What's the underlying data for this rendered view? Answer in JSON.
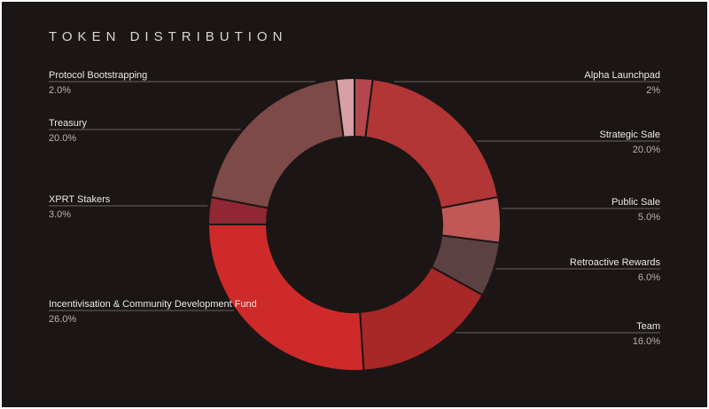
{
  "title": "TOKEN DISTRIBUTION",
  "colors": {
    "background": "#1b1615",
    "frame": "#ffffff",
    "title_text": "#d9d6d3",
    "label_text": "#eae8e6",
    "value_text": "#b9b3ae",
    "line": "#696460"
  },
  "chart_data": {
    "type": "pie",
    "variant": "donut",
    "title": "TOKEN DISTRIBUTION",
    "legend_position": "callout-labels",
    "slices": [
      {
        "label": "Alpha Launchpad",
        "value": 2,
        "value_label": "2%",
        "color": "#b2474d",
        "side": "right"
      },
      {
        "label": "Strategic Sale",
        "value": 20,
        "value_label": "20.0%",
        "color": "#b23636",
        "side": "right"
      },
      {
        "label": "Public Sale",
        "value": 5,
        "value_label": "5.0%",
        "color": "#c05858",
        "side": "right"
      },
      {
        "label": "Retroactive Rewards",
        "value": 6,
        "value_label": "6.0%",
        "color": "#5c4143",
        "side": "right"
      },
      {
        "label": "Team",
        "value": 16,
        "value_label": "16.0%",
        "color": "#a82727",
        "side": "right"
      },
      {
        "label": "Incentivisation & Community Development Fund",
        "value": 26,
        "value_label": "26.0%",
        "color": "#ce2a2a",
        "side": "left"
      },
      {
        "label": "XPRT Stakers",
        "value": 3,
        "value_label": "3.0%",
        "color": "#902733",
        "side": "left"
      },
      {
        "label": "Treasury",
        "value": 20,
        "value_label": "20.0%",
        "color": "#7d4a48",
        "side": "left"
      },
      {
        "label": "Protocol Bootstrapping",
        "value": 2,
        "value_label": "2.0%",
        "color": "#d6a0a6",
        "side": "left"
      }
    ]
  }
}
